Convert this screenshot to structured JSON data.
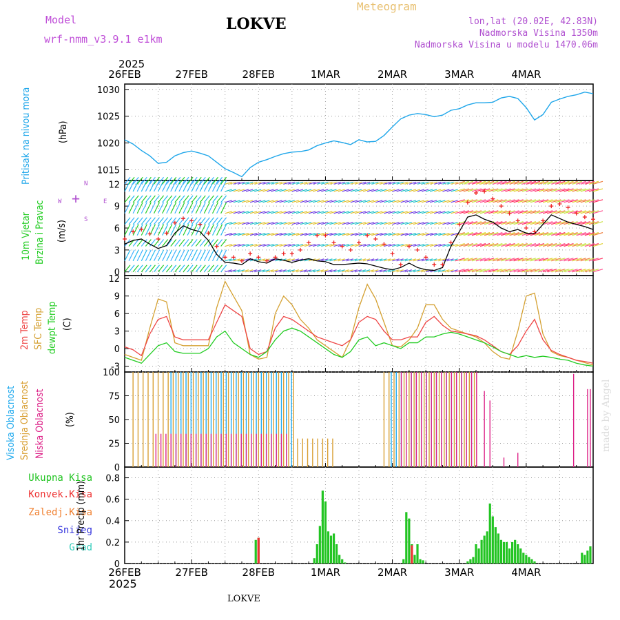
{
  "header": {
    "model_label": "Model",
    "model_name": "wrf-nmm_v3.9.1 e1km",
    "title": "LOKVE",
    "meteogram_label": "Meteogram",
    "lonlat": "lon,lat (20.02E, 42.83N)",
    "elevation": "Nadmorska Visina 1350m",
    "model_elevation": "Nadmorska Visina u modelu 1470.06m",
    "footer_station": "LOKVE",
    "watermark": "made by Angel"
  },
  "colors": {
    "pressure": "#1ea6ea",
    "temp2m": "#ee4444",
    "sfc_temp": "#d4a030",
    "dewpt": "#22cc22",
    "cloud_high": "#20aaee",
    "cloud_mid": "#d9a035",
    "cloud_low": "#dd2288",
    "precip_total": "#22c422",
    "precip_conv": "#ee3333",
    "precip_frozen": "#f08030",
    "precip_snow": "#3333dd",
    "precip_hail": "#33ccbb",
    "wind_speed": "#000000",
    "wind_gust": "#ee2222"
  },
  "time_axis": {
    "top_year": "2025",
    "bottom_year": "2025",
    "ticks": [
      "26FEB",
      "27FEB",
      "28FEB",
      "1MAR",
      "2MAR",
      "3MAR",
      "4MAR"
    ]
  },
  "chart_data": [
    {
      "type": "line",
      "name": "pressure",
      "ylabel": "Pritisak na nivou mora",
      "unit": "(hPa)",
      "ylim": [
        1013,
        1031
      ],
      "yticks": [
        1015,
        1020,
        1025,
        1030
      ],
      "x": [
        0,
        3,
        6,
        9,
        12,
        15,
        18,
        21,
        24,
        27,
        30,
        33,
        36,
        39,
        42,
        45,
        48,
        51,
        54,
        57,
        60,
        63,
        66,
        69,
        72,
        75,
        78,
        81,
        84,
        87,
        90,
        93,
        96,
        99,
        102,
        105,
        108,
        111,
        114,
        117,
        120,
        123,
        126,
        129,
        132,
        135,
        138,
        141,
        144,
        147,
        150,
        153,
        156,
        159,
        162,
        165,
        168
      ],
      "series": [
        {
          "name": "pressure",
          "values": [
            1020.6,
            1019.8,
            1018.6,
            1017.6,
            1016.2,
            1016.4,
            1017.6,
            1018.2,
            1018.5,
            1018.1,
            1017.6,
            1016.4,
            1015.2,
            1014.5,
            1013.7,
            1015.4,
            1016.4,
            1016.9,
            1017.5,
            1018.0,
            1018.3,
            1018.4,
            1018.7,
            1019.5,
            1020.0,
            1020.4,
            1020.1,
            1019.7,
            1020.6,
            1020.2,
            1020.3,
            1021.4,
            1023.0,
            1024.5,
            1025.2,
            1025.5,
            1025.3,
            1024.9,
            1025.2,
            1026.1,
            1026.4,
            1027.1,
            1027.5,
            1027.5,
            1027.6,
            1028.4,
            1028.7,
            1028.3,
            1026.6,
            1024.3,
            1025.3,
            1027.6,
            1028.2,
            1028.7,
            1029.0,
            1029.5,
            1029.2
          ]
        }
      ]
    },
    {
      "type": "line",
      "name": "wind",
      "ylabel": "10m Vjetar",
      "ylabel2": "Brzina i Pravac",
      "unit": "(m/s)",
      "compass": [
        "W",
        "E",
        "N",
        "S"
      ],
      "ylim": [
        -0.5,
        12.5
      ],
      "yticks": [
        0,
        3,
        6,
        9,
        12
      ],
      "x": [
        0,
        3,
        6,
        9,
        12,
        15,
        18,
        21,
        24,
        27,
        30,
        33,
        36,
        39,
        42,
        45,
        48,
        51,
        54,
        57,
        60,
        63,
        66,
        69,
        72,
        75,
        78,
        81,
        84,
        87,
        90,
        93,
        96,
        99,
        102,
        105,
        108,
        111,
        114,
        117,
        120,
        123,
        126,
        129,
        132,
        135,
        138,
        141,
        144,
        147,
        150,
        153,
        156,
        159,
        162,
        165,
        168
      ],
      "series": [
        {
          "name": "speed",
          "values": [
            3.8,
            4.3,
            4.5,
            3.8,
            3.2,
            3.6,
            5.3,
            6.3,
            5.8,
            5.5,
            4.3,
            2.4,
            1.3,
            1.2,
            1.0,
            1.8,
            1.4,
            1.2,
            1.8,
            1.6,
            1.3,
            1.6,
            1.8,
            1.5,
            1.4,
            1.0,
            1.0,
            1.1,
            1.2,
            1.1,
            0.8,
            0.5,
            0.3,
            0.6,
            1.2,
            0.6,
            0.3,
            0.2,
            0.6,
            3.5,
            5.5,
            7.5,
            7.8,
            7.2,
            6.8,
            6.0,
            5.5,
            5.8,
            5.3,
            5.2,
            6.5,
            7.8,
            7.3,
            6.8,
            6.5,
            6.2,
            5.8
          ]
        },
        {
          "name": "gust",
          "values": [
            4.5,
            5.5,
            5.8,
            5.2,
            4.5,
            5.3,
            6.7,
            7.3,
            7.0,
            6.5,
            5.3,
            3.5,
            2.0,
            2.0,
            1.5,
            2.5,
            2.0,
            1.5,
            2.0,
            2.5,
            2.5,
            3.0,
            4.0,
            5.0,
            5.0,
            4.0,
            3.5,
            3.0,
            4.0,
            5.0,
            4.5,
            3.8,
            2.5,
            1.0,
            3.5,
            3.0,
            2.0,
            1.0,
            1.0,
            4.0,
            6.5,
            9.5,
            10.8,
            11.0,
            10.0,
            9.0,
            8.0,
            7.0,
            6.0,
            5.5,
            7.0,
            9.0,
            9.3,
            8.8,
            8.0,
            7.5,
            7.2
          ]
        }
      ]
    },
    {
      "type": "line",
      "name": "temperature",
      "ylabels": [
        "2m Temp",
        "SFC Temp",
        "dewpt Temp"
      ],
      "unit": "(C)",
      "ylim": [
        -4,
        12.5
      ],
      "yticks": [
        -3,
        0,
        3,
        6,
        9,
        12
      ],
      "x": [
        0,
        3,
        6,
        9,
        12,
        15,
        18,
        21,
        24,
        27,
        30,
        33,
        36,
        39,
        42,
        45,
        48,
        51,
        54,
        57,
        60,
        63,
        66,
        69,
        72,
        75,
        78,
        81,
        84,
        87,
        90,
        93,
        96,
        99,
        102,
        105,
        108,
        111,
        114,
        117,
        120,
        123,
        126,
        129,
        132,
        135,
        138,
        141,
        144,
        147,
        150,
        153,
        156,
        159,
        162,
        165,
        168
      ],
      "series": [
        {
          "name": "2m Temp",
          "values": [
            0.3,
            -0.2,
            -1.2,
            2.5,
            5.0,
            5.5,
            2.0,
            1.5,
            1.5,
            1.5,
            1.5,
            4.5,
            7.5,
            6.5,
            5.5,
            0.0,
            -1.0,
            -0.5,
            3.5,
            5.5,
            5.0,
            4.0,
            3.0,
            2.0,
            1.5,
            1.0,
            0.5,
            1.5,
            4.5,
            5.5,
            5.0,
            3.0,
            1.5,
            1.5,
            2.0,
            2.0,
            4.5,
            5.5,
            4.0,
            3.0,
            2.8,
            2.5,
            2.2,
            1.5,
            0.5,
            -0.5,
            -1.0,
            0.5,
            3.0,
            5.0,
            1.5,
            -0.3,
            -1.0,
            -1.5,
            -2.0,
            -2.2,
            -2.5
          ]
        },
        {
          "name": "SFC Temp",
          "values": [
            -1.0,
            -1.5,
            -2.0,
            3.5,
            8.5,
            8.0,
            1.0,
            0.5,
            0.5,
            0.5,
            0.5,
            7.0,
            11.5,
            9.0,
            6.5,
            -1.0,
            -1.8,
            -1.5,
            6.0,
            9.0,
            7.5,
            5.0,
            3.5,
            1.5,
            0.5,
            -0.5,
            -1.5,
            1.5,
            7.0,
            11.0,
            8.5,
            4.5,
            0.5,
            0.3,
            1.5,
            3.5,
            7.5,
            7.5,
            5.0,
            3.5,
            3.0,
            2.5,
            2.0,
            1.0,
            -0.5,
            -1.5,
            -1.8,
            3.0,
            9.0,
            9.5,
            2.5,
            -0.5,
            -1.2,
            -1.5,
            -2.0,
            -2.4,
            -2.8
          ]
        },
        {
          "name": "dewpt Temp",
          "values": [
            -1.5,
            -2.0,
            -2.5,
            -1.0,
            0.5,
            1.0,
            -0.5,
            -0.8,
            -0.8,
            -0.8,
            0.0,
            2.0,
            3.0,
            1.0,
            0.0,
            -1.0,
            -1.5,
            -0.5,
            1.5,
            3.0,
            3.5,
            3.0,
            2.0,
            1.0,
            0.0,
            -1.0,
            -1.5,
            -0.5,
            1.5,
            2.0,
            0.5,
            1.0,
            0.5,
            0.0,
            1.0,
            1.0,
            2.0,
            2.0,
            2.5,
            2.8,
            2.5,
            2.0,
            1.5,
            1.0,
            0.3,
            -0.5,
            -1.0,
            -1.5,
            -1.2,
            -1.5,
            -1.3,
            -1.5,
            -1.8,
            -2.0,
            -2.5,
            -2.8,
            -3.0
          ]
        }
      ]
    },
    {
      "type": "bar",
      "name": "cloud",
      "ylabels": [
        "Visoka Oblacnost",
        "Srednja Oblacnost",
        "Niska Oblacnost"
      ],
      "unit": "(%)",
      "ylim": [
        0,
        100
      ],
      "yticks": [
        0,
        25,
        50,
        75,
        100
      ],
      "segments": [
        {
          "name": "Srednja Oblacnost",
          "start": 3,
          "end": 62,
          "value": 100
        },
        {
          "name": "Visoka Oblacnost",
          "start": 16,
          "end": 60,
          "value": 100
        },
        {
          "name": "Niska Oblacnost",
          "start": 10,
          "end": 58,
          "value": 35
        },
        {
          "name": "Srednja Oblacnost",
          "start": 62,
          "end": 76,
          "value": 30
        },
        {
          "name": "Srednja Oblacnost",
          "start": 93,
          "end": 126,
          "value": 100
        },
        {
          "name": "Visoka Oblacnost",
          "start": 95,
          "end": 124,
          "value": 100
        },
        {
          "name": "Niska Oblacnost",
          "start": 98,
          "end": 126,
          "value": 100
        }
      ],
      "extra_bars": [
        {
          "name": "Niska Oblacnost",
          "x": 129,
          "value": 80
        },
        {
          "name": "Niska Oblacnost",
          "x": 131,
          "value": 70
        },
        {
          "name": "Niska Oblacnost",
          "x": 136,
          "value": 10
        },
        {
          "name": "Niska Oblacnost",
          "x": 141,
          "value": 15
        },
        {
          "name": "Niska Oblacnost",
          "x": 161,
          "value": 98
        },
        {
          "name": "Niska Oblacnost",
          "x": 166,
          "value": 82
        },
        {
          "name": "Niska Oblacnost",
          "x": 167,
          "value": 82
        }
      ]
    },
    {
      "type": "bar",
      "name": "precipitation",
      "legend": [
        "Ukupna Kisa",
        "Konvek.Kisa",
        "Zaledj.Kisa",
        "Snijeg",
        "Grad"
      ],
      "ylabel": "1hr Precip (mm)",
      "ylim": [
        0,
        0.9
      ],
      "yticks": [
        0,
        0.2,
        0.4,
        0.6,
        0.8
      ],
      "x": [
        47,
        48,
        68,
        69,
        70,
        71,
        72,
        73,
        74,
        75,
        76,
        77,
        78,
        79,
        100,
        101,
        102,
        103,
        104,
        105,
        106,
        107,
        123,
        124,
        125,
        126,
        127,
        128,
        129,
        130,
        131,
        132,
        133,
        134,
        135,
        136,
        137,
        138,
        139,
        140,
        141,
        142,
        143,
        144,
        145,
        146,
        147,
        164,
        165,
        166,
        167
      ],
      "series": [
        {
          "name": "Ukupna Kisa",
          "values": [
            0.22,
            0.24,
            0.05,
            0.18,
            0.35,
            0.68,
            0.58,
            0.3,
            0.26,
            0.28,
            0.18,
            0.08,
            0.04,
            0.01,
            0.04,
            0.48,
            0.42,
            0.18,
            0.08,
            0.18,
            0.04,
            0.03,
            0.02,
            0.04,
            0.06,
            0.18,
            0.14,
            0.22,
            0.26,
            0.3,
            0.56,
            0.44,
            0.34,
            0.28,
            0.22,
            0.2,
            0.2,
            0.14,
            0.2,
            0.22,
            0.18,
            0.14,
            0.1,
            0.08,
            0.06,
            0.04,
            0.02,
            0.1,
            0.08,
            0.12,
            0.16
          ]
        },
        {
          "name": "Konvek.Kisa",
          "values": [
            0.0,
            0.24,
            0.0,
            0.0,
            0.0,
            0.0,
            0.0,
            0.0,
            0.0,
            0.0,
            0.0,
            0.0,
            0.0,
            0.0,
            0.0,
            0.0,
            0.0,
            0.17,
            0.0,
            0.0,
            0.0,
            0.0,
            0.0,
            0.0,
            0.0,
            0.0,
            0.0,
            0.0,
            0.0,
            0.0,
            0.0,
            0.0,
            0.0,
            0.0,
            0.0,
            0.0,
            0.0,
            0.0,
            0.0,
            0.0,
            0.0,
            0.0,
            0.0,
            0.0,
            0.0,
            0.0,
            0.0,
            0.0,
            0.0,
            0.0,
            0.0
          ]
        }
      ]
    }
  ]
}
